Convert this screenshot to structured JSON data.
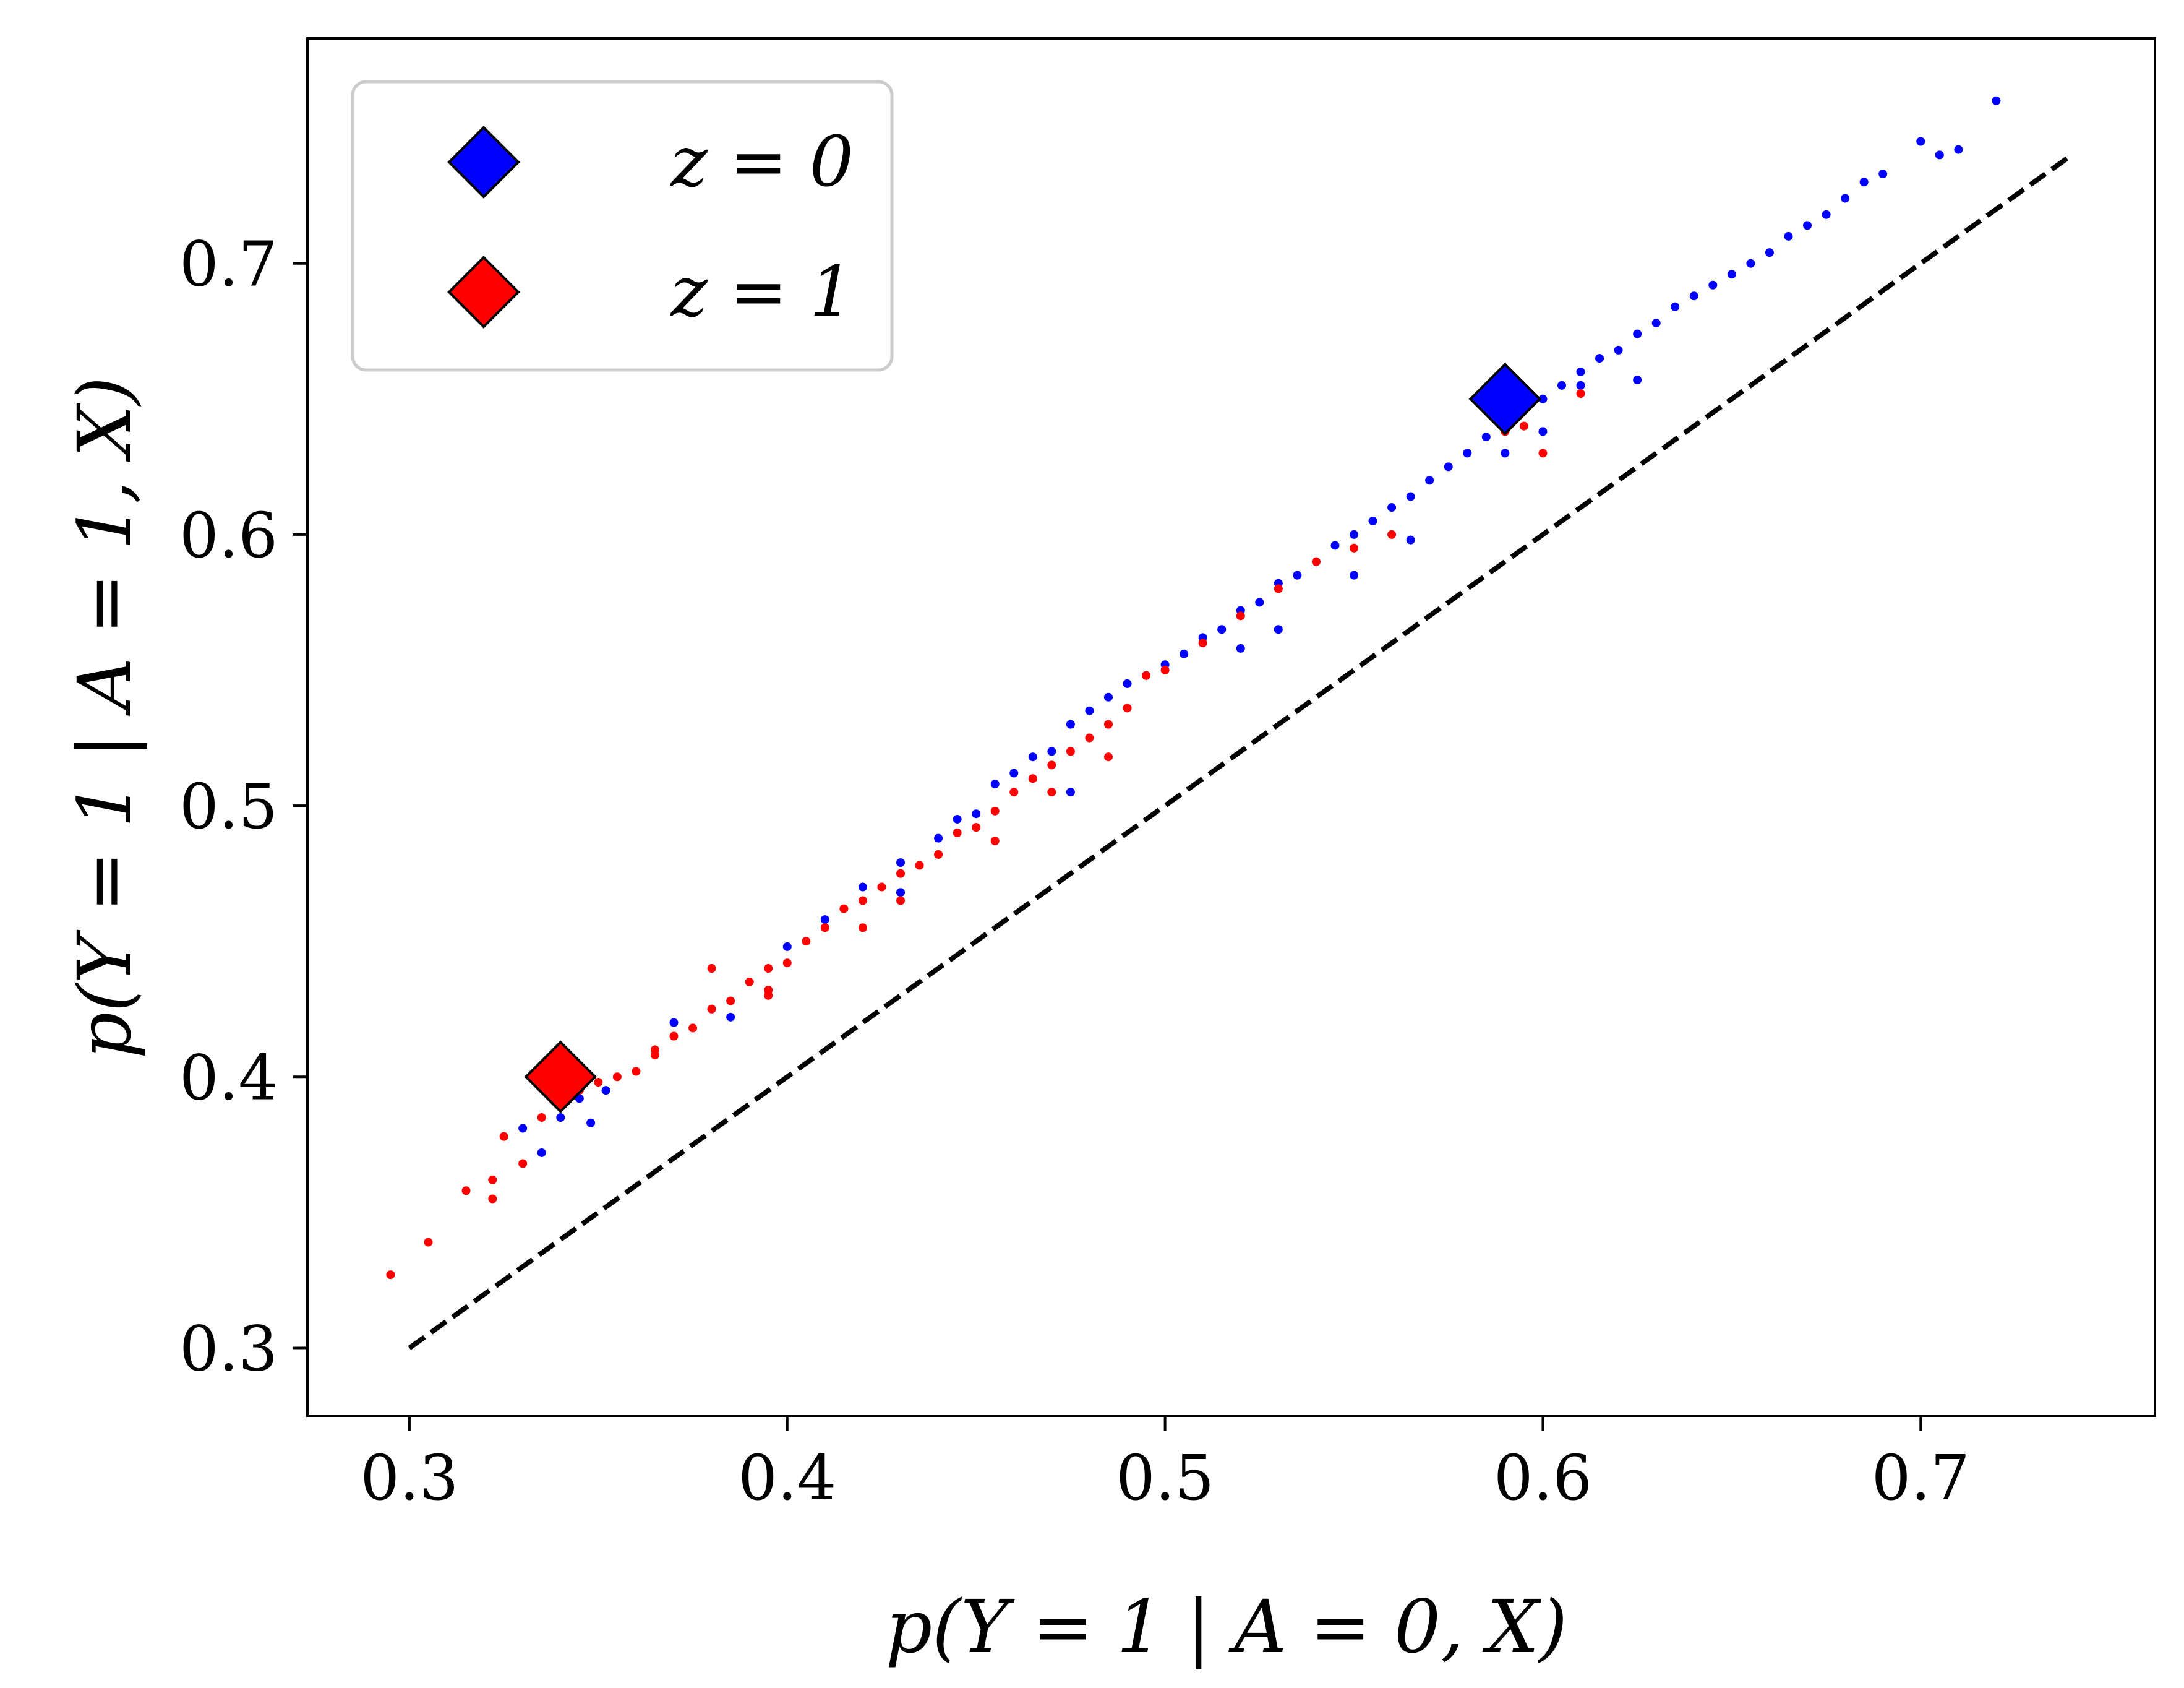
{
  "chart_data": {
    "type": "scatter",
    "title": "",
    "xlabel": "p(Y = 1 | A = 0, X)",
    "ylabel": "p(Y = 1 | A = 1, X)",
    "xlim": [
      0.273,
      0.762
    ],
    "ylim": [
      0.275,
      0.783
    ],
    "xticks": [
      0.3,
      0.4,
      0.5,
      0.6,
      0.7
    ],
    "yticks": [
      0.3,
      0.4,
      0.5,
      0.6,
      0.7
    ],
    "xtick_labels": [
      "0.3",
      "0.4",
      "0.5",
      "0.6",
      "0.7"
    ],
    "ytick_labels": [
      "0.3",
      "0.4",
      "0.5",
      "0.6",
      "0.7"
    ],
    "grid": false,
    "legend_position": "top-left",
    "reference_line": {
      "style": "dashed",
      "color": "#000000",
      "from": [
        0.3,
        0.3
      ],
      "to": [
        0.74,
        0.74
      ]
    },
    "series": [
      {
        "name": "z = 0",
        "color": "#0000ff",
        "marker": "diamond",
        "centroid": [
          0.59,
          0.65
        ],
        "points": [
          [
            0.33,
            0.381
          ],
          [
            0.335,
            0.372
          ],
          [
            0.34,
            0.385
          ],
          [
            0.345,
            0.392
          ],
          [
            0.348,
            0.383
          ],
          [
            0.352,
            0.395
          ],
          [
            0.37,
            0.42
          ],
          [
            0.38,
            0.425
          ],
          [
            0.385,
            0.422
          ],
          [
            0.4,
            0.448
          ],
          [
            0.41,
            0.458
          ],
          [
            0.42,
            0.47
          ],
          [
            0.43,
            0.479
          ],
          [
            0.44,
            0.488
          ],
          [
            0.445,
            0.495
          ],
          [
            0.45,
            0.497
          ],
          [
            0.455,
            0.508
          ],
          [
            0.46,
            0.512
          ],
          [
            0.465,
            0.518
          ],
          [
            0.47,
            0.52
          ],
          [
            0.475,
            0.53
          ],
          [
            0.48,
            0.535
          ],
          [
            0.485,
            0.54
          ],
          [
            0.49,
            0.545
          ],
          [
            0.495,
            0.548
          ],
          [
            0.5,
            0.552
          ],
          [
            0.505,
            0.556
          ],
          [
            0.51,
            0.562
          ],
          [
            0.515,
            0.565
          ],
          [
            0.52,
            0.572
          ],
          [
            0.525,
            0.575
          ],
          [
            0.53,
            0.582
          ],
          [
            0.535,
            0.585
          ],
          [
            0.54,
            0.59
          ],
          [
            0.545,
            0.596
          ],
          [
            0.55,
            0.6
          ],
          [
            0.555,
            0.605
          ],
          [
            0.56,
            0.61
          ],
          [
            0.565,
            0.614
          ],
          [
            0.57,
            0.62
          ],
          [
            0.575,
            0.625
          ],
          [
            0.58,
            0.63
          ],
          [
            0.585,
            0.636
          ],
          [
            0.59,
            0.642
          ],
          [
            0.595,
            0.646
          ],
          [
            0.6,
            0.65
          ],
          [
            0.605,
            0.655
          ],
          [
            0.61,
            0.66
          ],
          [
            0.615,
            0.665
          ],
          [
            0.62,
            0.668
          ],
          [
            0.625,
            0.674
          ],
          [
            0.63,
            0.678
          ],
          [
            0.635,
            0.684
          ],
          [
            0.64,
            0.688
          ],
          [
            0.645,
            0.692
          ],
          [
            0.65,
            0.696
          ],
          [
            0.655,
            0.7
          ],
          [
            0.66,
            0.704
          ],
          [
            0.665,
            0.71
          ],
          [
            0.67,
            0.714
          ],
          [
            0.675,
            0.718
          ],
          [
            0.68,
            0.724
          ],
          [
            0.685,
            0.73
          ],
          [
            0.69,
            0.733
          ],
          [
            0.7,
            0.745
          ],
          [
            0.705,
            0.74
          ],
          [
            0.71,
            0.742
          ],
          [
            0.72,
            0.76
          ],
          [
            0.625,
            0.657
          ],
          [
            0.61,
            0.655
          ],
          [
            0.565,
            0.598
          ],
          [
            0.53,
            0.565
          ],
          [
            0.52,
            0.558
          ],
          [
            0.475,
            0.505
          ],
          [
            0.43,
            0.468
          ],
          [
            0.59,
            0.63
          ],
          [
            0.55,
            0.585
          ],
          [
            0.6,
            0.638
          ]
        ]
      },
      {
        "name": "z = 1",
        "color": "#ff0000",
        "marker": "diamond",
        "centroid": [
          0.34,
          0.4
        ],
        "points": [
          [
            0.295,
            0.327
          ],
          [
            0.305,
            0.339
          ],
          [
            0.315,
            0.358
          ],
          [
            0.322,
            0.355
          ],
          [
            0.322,
            0.362
          ],
          [
            0.325,
            0.378
          ],
          [
            0.33,
            0.368
          ],
          [
            0.335,
            0.385
          ],
          [
            0.34,
            0.39
          ],
          [
            0.345,
            0.395
          ],
          [
            0.35,
            0.398
          ],
          [
            0.355,
            0.4
          ],
          [
            0.36,
            0.402
          ],
          [
            0.365,
            0.41
          ],
          [
            0.37,
            0.415
          ],
          [
            0.375,
            0.418
          ],
          [
            0.38,
            0.425
          ],
          [
            0.385,
            0.428
          ],
          [
            0.39,
            0.435
          ],
          [
            0.395,
            0.44
          ],
          [
            0.4,
            0.442
          ],
          [
            0.405,
            0.45
          ],
          [
            0.41,
            0.455
          ],
          [
            0.415,
            0.462
          ],
          [
            0.42,
            0.465
          ],
          [
            0.425,
            0.47
          ],
          [
            0.43,
            0.475
          ],
          [
            0.435,
            0.478
          ],
          [
            0.44,
            0.482
          ],
          [
            0.445,
            0.49
          ],
          [
            0.45,
            0.492
          ],
          [
            0.455,
            0.498
          ],
          [
            0.46,
            0.505
          ],
          [
            0.465,
            0.51
          ],
          [
            0.47,
            0.515
          ],
          [
            0.475,
            0.52
          ],
          [
            0.48,
            0.525
          ],
          [
            0.485,
            0.53
          ],
          [
            0.49,
            0.536
          ],
          [
            0.495,
            0.548
          ],
          [
            0.5,
            0.55
          ],
          [
            0.51,
            0.56
          ],
          [
            0.52,
            0.57
          ],
          [
            0.53,
            0.58
          ],
          [
            0.54,
            0.59
          ],
          [
            0.55,
            0.595
          ],
          [
            0.56,
            0.6
          ],
          [
            0.59,
            0.638
          ],
          [
            0.595,
            0.64
          ],
          [
            0.6,
            0.63
          ],
          [
            0.61,
            0.652
          ],
          [
            0.38,
            0.44
          ],
          [
            0.395,
            0.432
          ],
          [
            0.42,
            0.455
          ],
          [
            0.455,
            0.487
          ],
          [
            0.47,
            0.505
          ],
          [
            0.485,
            0.518
          ],
          [
            0.395,
            0.43
          ],
          [
            0.43,
            0.465
          ],
          [
            0.365,
            0.408
          ]
        ]
      }
    ]
  }
}
